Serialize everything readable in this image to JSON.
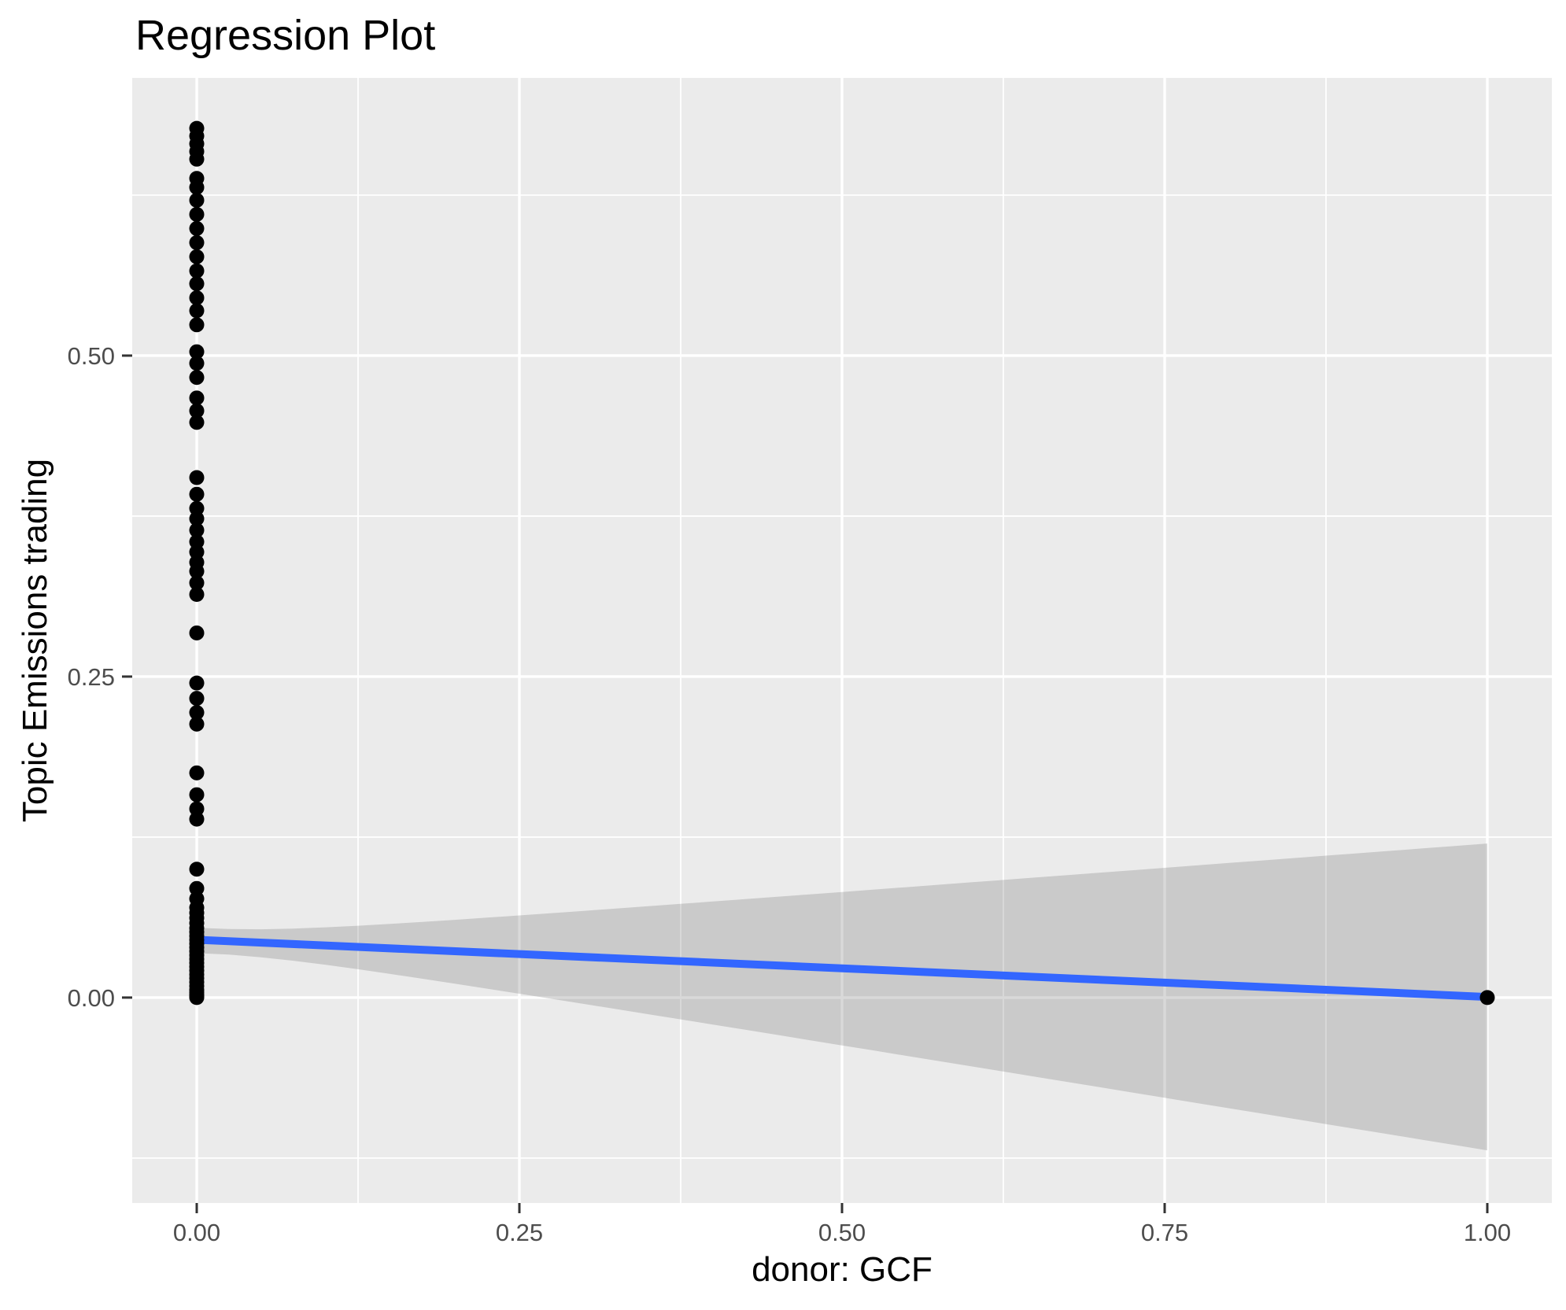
{
  "chart_data": {
    "type": "scatter",
    "title": "Regression Plot",
    "xlabel": "donor: GCF",
    "ylabel": "Topic Emissions trading",
    "xlim": [
      -0.05,
      1.05
    ],
    "ylim": [
      -0.16,
      0.7163
    ],
    "grid": true,
    "legend": false,
    "x_ticks": {
      "values": [
        0.0,
        0.25,
        0.5,
        0.75,
        1.0
      ],
      "labels": [
        "0.00",
        "0.25",
        "0.50",
        "0.75",
        "1.00"
      ]
    },
    "y_ticks": {
      "values": [
        0.0,
        0.25,
        0.5
      ],
      "labels": [
        "0.00",
        "0.25",
        "0.50"
      ]
    },
    "x_minor": [
      0.125,
      0.375,
      0.625,
      0.875
    ],
    "y_minor": [
      -0.125,
      0.125,
      0.375,
      0.625
    ],
    "points": [
      [
        0,
        0.677
      ],
      [
        0,
        0.671
      ],
      [
        0,
        0.665
      ],
      [
        0,
        0.659
      ],
      [
        0,
        0.653
      ],
      [
        0,
        0.638
      ],
      [
        0,
        0.631
      ],
      [
        0,
        0.621
      ],
      [
        0,
        0.61
      ],
      [
        0,
        0.599
      ],
      [
        0,
        0.588
      ],
      [
        0,
        0.577
      ],
      [
        0,
        0.566
      ],
      [
        0,
        0.556
      ],
      [
        0,
        0.545
      ],
      [
        0,
        0.535
      ],
      [
        0,
        0.524
      ],
      [
        0,
        0.503
      ],
      [
        0,
        0.494
      ],
      [
        0,
        0.483
      ],
      [
        0,
        0.467
      ],
      [
        0,
        0.457
      ],
      [
        0,
        0.448
      ],
      [
        0,
        0.405
      ],
      [
        0,
        0.392
      ],
      [
        0,
        0.381
      ],
      [
        0,
        0.373
      ],
      [
        0,
        0.364
      ],
      [
        0,
        0.355
      ],
      [
        0,
        0.347
      ],
      [
        0,
        0.339
      ],
      [
        0,
        0.332
      ],
      [
        0,
        0.323
      ],
      [
        0,
        0.314
      ],
      [
        0,
        0.284
      ],
      [
        0,
        0.245
      ],
      [
        0,
        0.233
      ],
      [
        0,
        0.222
      ],
      [
        0,
        0.213
      ],
      [
        0,
        0.175
      ],
      [
        0,
        0.158
      ],
      [
        0,
        0.147
      ],
      [
        0,
        0.139
      ],
      [
        0,
        0.1
      ],
      [
        0,
        0.085
      ],
      [
        0,
        0.077
      ],
      [
        0,
        0.07
      ],
      [
        0,
        0.066
      ],
      [
        0,
        0.062
      ],
      [
        0,
        0.058
      ],
      [
        0,
        0.054
      ],
      [
        0,
        0.051
      ],
      [
        0,
        0.048
      ],
      [
        0,
        0.045
      ],
      [
        0,
        0.042
      ],
      [
        0,
        0.039
      ],
      [
        0,
        0.036
      ],
      [
        0,
        0.033
      ],
      [
        0,
        0.03
      ],
      [
        0,
        0.027
      ],
      [
        0,
        0.024
      ],
      [
        0,
        0.021
      ],
      [
        0,
        0.018
      ],
      [
        0,
        0.015
      ],
      [
        0,
        0.012
      ],
      [
        0,
        0.009
      ],
      [
        0,
        0.006
      ],
      [
        0,
        0.004
      ],
      [
        0,
        0.002
      ],
      [
        0,
        0.001
      ],
      [
        0,
        0.0
      ],
      [
        1,
        0.0
      ]
    ],
    "regression_line": {
      "x0": 0,
      "y0": 0.045,
      "x1": 1,
      "y1": 0.0005
    },
    "confidence_band": {
      "center0": 0.0445,
      "center1": 0.0005,
      "se0": 0.0098,
      "se1": 0.1195,
      "xbar": 0.01
    },
    "colors": {
      "point": "#000000",
      "line": "#3366FF",
      "band": "rgba(102,102,102,0.25)",
      "panel": "#EBEBEB",
      "grid": "#FFFFFF",
      "tick_label": "#4D4D4D",
      "tick_mark": "#333333",
      "text": "#000000"
    }
  }
}
